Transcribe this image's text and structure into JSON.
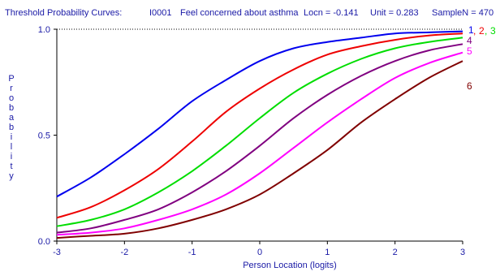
{
  "header": {
    "title": "Threshold Probability Curves:",
    "item": "I0001",
    "item_desc": "Feel concerned about asthma",
    "locn": "Locn = -0.141",
    "unit": "Unit = 0.283",
    "sample": "SampleN = 470"
  },
  "chart_data": {
    "type": "line",
    "xlabel": "Person Location (logits)",
    "ylabel": "Probability",
    "xlim": [
      -3,
      3
    ],
    "ylim": [
      0,
      1
    ],
    "x_ticks": [
      "-3",
      "-2",
      "-1",
      "0",
      "1",
      "2",
      "3"
    ],
    "y_ticks": [
      "0.0",
      "0.5",
      "1.0"
    ],
    "reference_line": {
      "y": 1.0,
      "style": "dotted"
    },
    "x": [
      -3.0,
      -2.5,
      -2.0,
      -1.5,
      -1.0,
      -0.5,
      0.0,
      0.5,
      1.0,
      1.5,
      2.0,
      2.5,
      3.0
    ],
    "series": [
      {
        "name": "1",
        "color": "#0000ee",
        "values": [
          0.21,
          0.3,
          0.41,
          0.53,
          0.66,
          0.76,
          0.85,
          0.91,
          0.94,
          0.96,
          0.98,
          0.985,
          0.99
        ]
      },
      {
        "name": "2",
        "color": "#ee0000",
        "values": [
          0.11,
          0.16,
          0.24,
          0.34,
          0.47,
          0.61,
          0.72,
          0.81,
          0.88,
          0.92,
          0.95,
          0.97,
          0.98
        ]
      },
      {
        "name": "3",
        "color": "#00dd00",
        "values": [
          0.07,
          0.1,
          0.15,
          0.23,
          0.33,
          0.45,
          0.58,
          0.7,
          0.79,
          0.86,
          0.91,
          0.94,
          0.96
        ]
      },
      {
        "name": "4",
        "color": "#800080",
        "values": [
          0.04,
          0.06,
          0.1,
          0.15,
          0.23,
          0.33,
          0.45,
          0.58,
          0.69,
          0.78,
          0.85,
          0.9,
          0.93
        ]
      },
      {
        "name": "5",
        "color": "#ff00ff",
        "values": [
          0.03,
          0.04,
          0.06,
          0.1,
          0.15,
          0.22,
          0.32,
          0.44,
          0.56,
          0.67,
          0.77,
          0.84,
          0.89
        ]
      },
      {
        "name": "6",
        "color": "#800000",
        "values": [
          0.015,
          0.025,
          0.035,
          0.06,
          0.1,
          0.15,
          0.22,
          0.32,
          0.43,
          0.56,
          0.67,
          0.77,
          0.85
        ]
      }
    ],
    "series_labels": [
      {
        "text": "1",
        "color": "#0000ee"
      },
      {
        "text": ",",
        "color": "#ee0000"
      },
      {
        "text": "2",
        "color": "#ee0000"
      },
      {
        "text": ",",
        "color": "#00dd00"
      },
      {
        "text": "3",
        "color": "#00dd00"
      },
      {
        "text": "4",
        "color": "#800080"
      },
      {
        "text": "5",
        "color": "#ff00ff"
      },
      {
        "text": "6",
        "color": "#800000"
      }
    ],
    "grid": false
  }
}
